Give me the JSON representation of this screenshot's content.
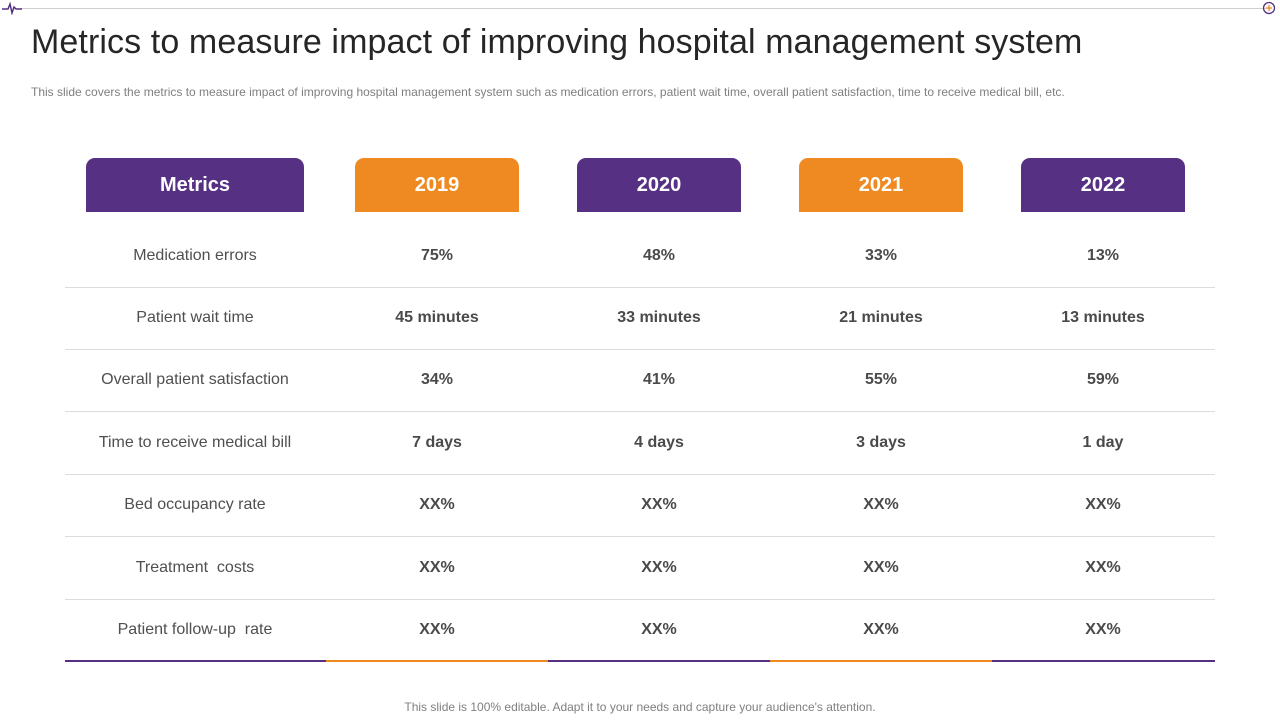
{
  "title": "Metrics to measure impact of improving hospital management system",
  "subtitle": "This slide covers the metrics to measure impact of improving hospital management system such as medication errors, patient wait time, overall patient satisfaction, time to receive medical bill, etc.",
  "table": {
    "headers": [
      "Metrics",
      "2019",
      "2020",
      "2021",
      "2022"
    ],
    "rows": [
      {
        "label": "Medication errors",
        "values": [
          "75%",
          "48%",
          "33%",
          "13%"
        ]
      },
      {
        "label": "Patient wait time",
        "values": [
          "45 minutes",
          "33 minutes",
          "21 minutes",
          "13 minutes"
        ]
      },
      {
        "label": "Overall patient satisfaction",
        "values": [
          "34%",
          "41%",
          "55%",
          "59%"
        ]
      },
      {
        "label": "Time to receive medical bill",
        "values": [
          "7 days",
          "4 days",
          "3 days",
          "1 day"
        ]
      },
      {
        "label": "Bed occupancy rate",
        "values": [
          "XX%",
          "XX%",
          "XX%",
          "XX%"
        ]
      },
      {
        "label": "Treatment  costs",
        "values": [
          "XX%",
          "XX%",
          "XX%",
          "XX%"
        ]
      },
      {
        "label": "Patient follow-up  rate",
        "values": [
          "XX%",
          "XX%",
          "XX%",
          "XX%"
        ]
      }
    ]
  },
  "colors": {
    "purple": "#563082",
    "orange": "#ef8a22"
  },
  "icons": {
    "top_left": "heartbeat-pulse-icon",
    "top_right": "plus-circle-icon"
  },
  "footer": "This slide is 100% editable. Adapt it to your needs and capture your audience's attention."
}
